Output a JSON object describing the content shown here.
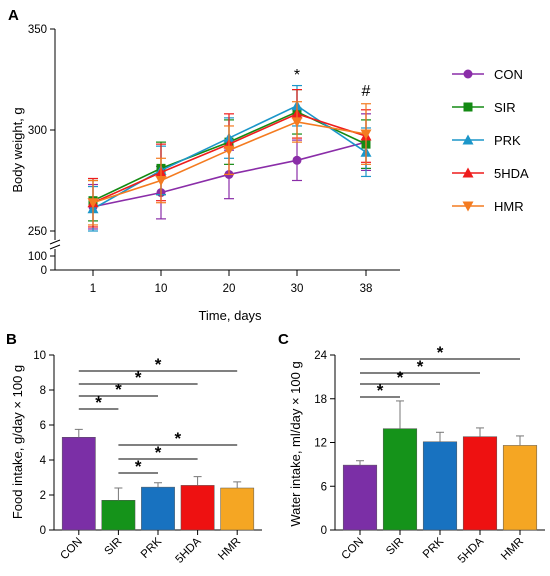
{
  "panels": {
    "A": {
      "letter": "A",
      "xlabel": "Time, days",
      "ylabel": "Body weight, g",
      "annotations": [
        {
          "x": 30,
          "text": "*"
        },
        {
          "x": 38,
          "text": "#"
        }
      ]
    },
    "B": {
      "letter": "B",
      "ylabel": "Food intake, g/day × 100 g",
      "sig_star": "*"
    },
    "C": {
      "letter": "C",
      "ylabel": "Water intake, ml/day × 100 g",
      "sig_star": "*"
    }
  },
  "chart_data": [
    {
      "type": "line",
      "x": [
        1,
        10,
        20,
        30,
        38
      ],
      "xticks": [
        "1",
        "10",
        "20",
        "30",
        "38"
      ],
      "xlabel": "Time, days",
      "ylabel": "Body weight, g",
      "yticks_upper": [
        "250",
        "300",
        "350"
      ],
      "yticks_lower": [
        "0",
        "100"
      ],
      "ylim": [
        250,
        350
      ],
      "axis_break": true,
      "legend_position": "right",
      "series": [
        {
          "name": "CON",
          "color": "#8a2da8",
          "marker": "circle",
          "values": [
            262,
            269,
            278,
            285,
            294
          ],
          "err": [
            11,
            13,
            12,
            10,
            14
          ]
        },
        {
          "name": "SIR",
          "color": "#138a13",
          "marker": "square",
          "values": [
            265,
            281,
            294,
            309,
            293
          ],
          "err": [
            10,
            13,
            11,
            11,
            12
          ]
        },
        {
          "name": "PRK",
          "color": "#1b96c9",
          "marker": "triangle-up",
          "values": [
            261,
            280,
            296,
            312,
            289
          ],
          "err": [
            11,
            12,
            10,
            10,
            12
          ]
        },
        {
          "name": "5HDA",
          "color": "#ee1c1c",
          "marker": "triangle-up",
          "values": [
            264,
            279,
            293,
            308,
            297
          ],
          "err": [
            12,
            14,
            15,
            12,
            13
          ]
        },
        {
          "name": "HMR",
          "color": "#f47b20",
          "marker": "triangle-down",
          "values": [
            264,
            275,
            290,
            304,
            298
          ],
          "err": [
            11,
            11,
            12,
            10,
            15
          ]
        }
      ],
      "annotations": [
        {
          "x": 30,
          "text": "*"
        },
        {
          "x": 38,
          "text": "#"
        }
      ]
    },
    {
      "type": "bar",
      "categories": [
        "CON",
        "SIR",
        "PRK",
        "5HDA",
        "HMR"
      ],
      "values": [
        5.3,
        1.7,
        2.45,
        2.55,
        2.4
      ],
      "errors": [
        0.45,
        0.7,
        0.25,
        0.5,
        0.35
      ],
      "colors": [
        "#7b2fa6",
        "#15931a",
        "#1872c0",
        "#ee1111",
        "#f5a623"
      ],
      "ylabel": "Food intake, g/day × 100 g",
      "ylim": [
        0,
        10
      ],
      "yticks": [
        "0",
        "2",
        "4",
        "6",
        "8",
        "10"
      ],
      "significance": [
        {
          "from": 0,
          "to": 1,
          "label": "*"
        },
        {
          "from": 0,
          "to": 2,
          "label": "*"
        },
        {
          "from": 0,
          "to": 3,
          "label": "*"
        },
        {
          "from": 0,
          "to": 4,
          "label": "*"
        },
        {
          "from": 1,
          "to": 2,
          "label": "*"
        },
        {
          "from": 1,
          "to": 3,
          "label": "*"
        },
        {
          "from": 1,
          "to": 4,
          "label": "*"
        }
      ]
    },
    {
      "type": "bar",
      "categories": [
        "CON",
        "SIR",
        "PRK",
        "5HDA",
        "HMR"
      ],
      "values": [
        8.9,
        13.9,
        12.1,
        12.8,
        11.6
      ],
      "errors": [
        0.6,
        3.8,
        1.3,
        1.2,
        1.3
      ],
      "colors": [
        "#7b2fa6",
        "#15931a",
        "#1872c0",
        "#ee1111",
        "#f5a623"
      ],
      "ylabel": "Water intake, ml/day × 100 g",
      "ylim": [
        0,
        24
      ],
      "yticks": [
        "0",
        "6",
        "12",
        "18",
        "24"
      ],
      "significance": [
        {
          "from": 0,
          "to": 1,
          "label": "*"
        },
        {
          "from": 0,
          "to": 2,
          "label": "*"
        },
        {
          "from": 0,
          "to": 3,
          "label": "*"
        },
        {
          "from": 0,
          "to": 4,
          "label": "*"
        }
      ]
    }
  ]
}
